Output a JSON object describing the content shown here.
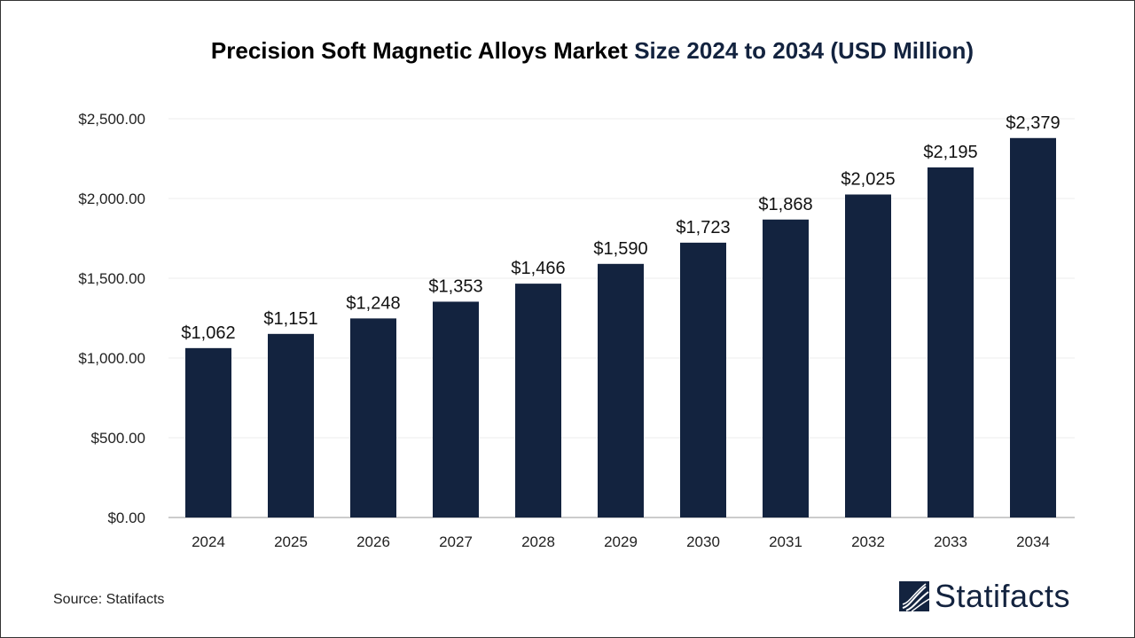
{
  "chart_data": {
    "type": "bar",
    "title_part1": "Precision Soft Magnetic Alloys Market",
    "title_part2": "Size 2024 to 2034 (USD Million)",
    "categories": [
      "2024",
      "2025",
      "2026",
      "2027",
      "2028",
      "2029",
      "2030",
      "2031",
      "2032",
      "2033",
      "2034"
    ],
    "values": [
      1062,
      1151,
      1248,
      1353,
      1466,
      1590,
      1723,
      1868,
      2025,
      2195,
      2379
    ],
    "data_labels": [
      "$1,062",
      "$1,151",
      "$1,248",
      "$1,353",
      "$1,466",
      "$1,590",
      "$1,723",
      "$1,868",
      "$2,025",
      "$2,195",
      "$2,379"
    ],
    "yticks": [
      0,
      500,
      1000,
      1500,
      2000,
      2500
    ],
    "ytick_labels": [
      "$0.00",
      "$500.00",
      "$1,000.00",
      "$1,500.00",
      "$2,000.00",
      "$2,500.00"
    ],
    "ylim": [
      0,
      2500
    ],
    "xlabel": "",
    "ylabel": "",
    "grid": true,
    "bar_color": "#13233f"
  },
  "source": "Source: Statifacts",
  "logo": {
    "text": "Statifacts",
    "color": "#13233f"
  }
}
